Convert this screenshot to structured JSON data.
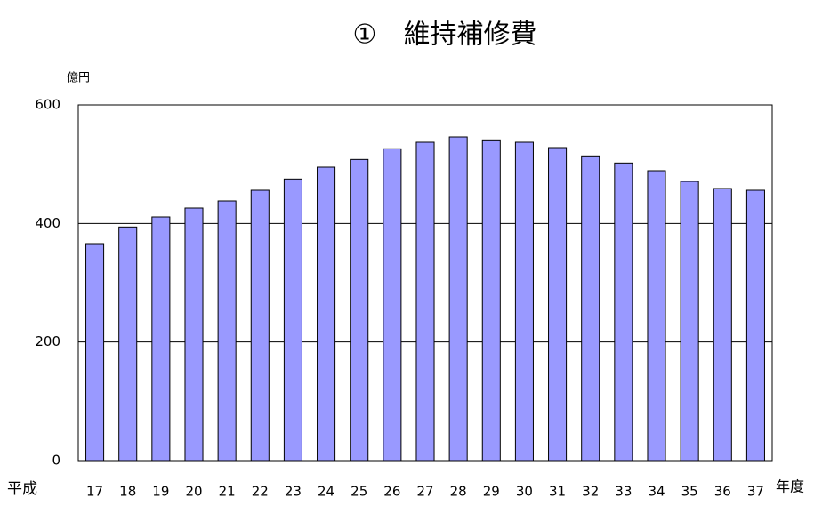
{
  "chart_data": {
    "type": "bar",
    "title": "①　維持補修費",
    "y_unit": "億円",
    "x_prefix": "平成",
    "x_suffix": "年度",
    "categories": [
      "17",
      "18",
      "19",
      "20",
      "21",
      "22",
      "23",
      "24",
      "25",
      "26",
      "27",
      "28",
      "29",
      "30",
      "31",
      "32",
      "33",
      "34",
      "35",
      "36",
      "37"
    ],
    "values": [
      366,
      394,
      411,
      426,
      438,
      456,
      475,
      495,
      508,
      526,
      537,
      546,
      541,
      537,
      528,
      514,
      502,
      489,
      471,
      459,
      456
    ],
    "color": "#9999ff",
    "ylim": [
      0,
      600
    ],
    "yticks": [
      0,
      200,
      400,
      600
    ],
    "grid": true
  }
}
